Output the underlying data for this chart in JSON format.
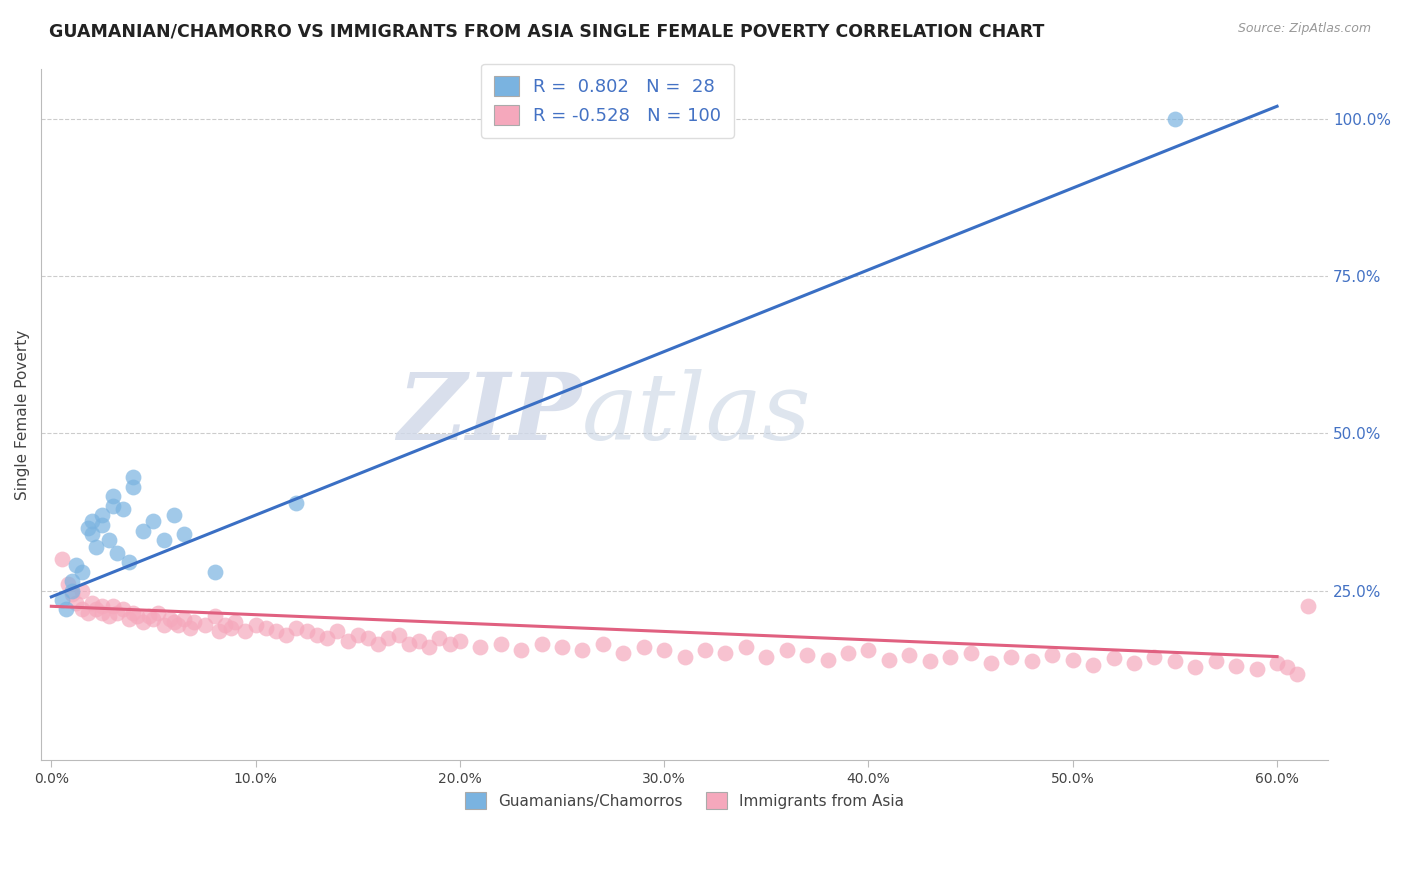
{
  "title": "GUAMANIAN/CHAMORRO VS IMMIGRANTS FROM ASIA SINGLE FEMALE POVERTY CORRELATION CHART",
  "source": "Source: ZipAtlas.com",
  "ylabel": "Single Female Poverty",
  "xlabel_ticks": [
    "0.0%",
    "10.0%",
    "20.0%",
    "30.0%",
    "40.0%",
    "50.0%",
    "60.0%"
  ],
  "xlabel_vals": [
    0.0,
    0.1,
    0.2,
    0.3,
    0.4,
    0.5,
    0.6
  ],
  "ylabel_ticks_right": [
    "100.0%",
    "75.0%",
    "50.0%",
    "25.0%"
  ],
  "ylabel_vals_right": [
    1.0,
    0.75,
    0.5,
    0.25
  ],
  "xlim": [
    -0.005,
    0.625
  ],
  "ylim": [
    -0.02,
    1.08
  ],
  "r_blue": 0.802,
  "n_blue": 28,
  "r_pink": -0.528,
  "n_pink": 100,
  "blue_color": "#7ab3e0",
  "pink_color": "#f5a8bc",
  "blue_line_color": "#3a6fc4",
  "pink_line_color": "#e06080",
  "legend_label_blue": "Guamanians/Chamorros",
  "legend_label_pink": "Immigrants from Asia",
  "watermark_zip": "ZIP",
  "watermark_atlas": "atlas",
  "blue_line_x0": 0.0,
  "blue_line_y0": 0.24,
  "blue_line_x1": 0.6,
  "blue_line_y1": 1.02,
  "pink_line_x0": 0.0,
  "pink_line_y0": 0.225,
  "pink_line_x1": 0.6,
  "pink_line_y1": 0.145,
  "blue_scatter_x": [
    0.005,
    0.007,
    0.01,
    0.01,
    0.012,
    0.015,
    0.018,
    0.02,
    0.02,
    0.022,
    0.025,
    0.025,
    0.028,
    0.03,
    0.03,
    0.032,
    0.035,
    0.038,
    0.04,
    0.04,
    0.045,
    0.05,
    0.055,
    0.06,
    0.065,
    0.08,
    0.12,
    0.55
  ],
  "blue_scatter_y": [
    0.235,
    0.22,
    0.265,
    0.25,
    0.29,
    0.28,
    0.35,
    0.36,
    0.34,
    0.32,
    0.37,
    0.355,
    0.33,
    0.4,
    0.385,
    0.31,
    0.38,
    0.295,
    0.43,
    0.415,
    0.345,
    0.36,
    0.33,
    0.37,
    0.34,
    0.28,
    0.39,
    1.0
  ],
  "pink_scatter_x": [
    0.005,
    0.008,
    0.01,
    0.012,
    0.015,
    0.015,
    0.018,
    0.02,
    0.022,
    0.025,
    0.025,
    0.028,
    0.03,
    0.032,
    0.035,
    0.038,
    0.04,
    0.042,
    0.045,
    0.048,
    0.05,
    0.052,
    0.055,
    0.058,
    0.06,
    0.062,
    0.065,
    0.068,
    0.07,
    0.075,
    0.08,
    0.082,
    0.085,
    0.088,
    0.09,
    0.095,
    0.1,
    0.105,
    0.11,
    0.115,
    0.12,
    0.125,
    0.13,
    0.135,
    0.14,
    0.145,
    0.15,
    0.155,
    0.16,
    0.165,
    0.17,
    0.175,
    0.18,
    0.185,
    0.19,
    0.195,
    0.2,
    0.21,
    0.22,
    0.23,
    0.24,
    0.25,
    0.26,
    0.27,
    0.28,
    0.29,
    0.3,
    0.31,
    0.32,
    0.33,
    0.34,
    0.35,
    0.36,
    0.37,
    0.38,
    0.39,
    0.4,
    0.41,
    0.42,
    0.43,
    0.44,
    0.45,
    0.46,
    0.47,
    0.48,
    0.49,
    0.5,
    0.51,
    0.52,
    0.53,
    0.54,
    0.55,
    0.56,
    0.57,
    0.58,
    0.59,
    0.6,
    0.605,
    0.61,
    0.615
  ],
  "pink_scatter_y": [
    0.3,
    0.26,
    0.245,
    0.23,
    0.22,
    0.25,
    0.215,
    0.23,
    0.22,
    0.215,
    0.225,
    0.21,
    0.225,
    0.215,
    0.22,
    0.205,
    0.215,
    0.21,
    0.2,
    0.21,
    0.205,
    0.215,
    0.195,
    0.205,
    0.2,
    0.195,
    0.205,
    0.19,
    0.2,
    0.195,
    0.21,
    0.185,
    0.195,
    0.19,
    0.2,
    0.185,
    0.195,
    0.19,
    0.185,
    0.18,
    0.19,
    0.185,
    0.18,
    0.175,
    0.185,
    0.17,
    0.18,
    0.175,
    0.165,
    0.175,
    0.18,
    0.165,
    0.17,
    0.16,
    0.175,
    0.165,
    0.17,
    0.16,
    0.165,
    0.155,
    0.165,
    0.16,
    0.155,
    0.165,
    0.15,
    0.16,
    0.155,
    0.145,
    0.155,
    0.15,
    0.16,
    0.145,
    0.155,
    0.148,
    0.14,
    0.15,
    0.155,
    0.14,
    0.148,
    0.138,
    0.145,
    0.15,
    0.135,
    0.145,
    0.138,
    0.148,
    0.14,
    0.132,
    0.142,
    0.135,
    0.145,
    0.138,
    0.128,
    0.138,
    0.13,
    0.125,
    0.135,
    0.128,
    0.118,
    0.225
  ]
}
